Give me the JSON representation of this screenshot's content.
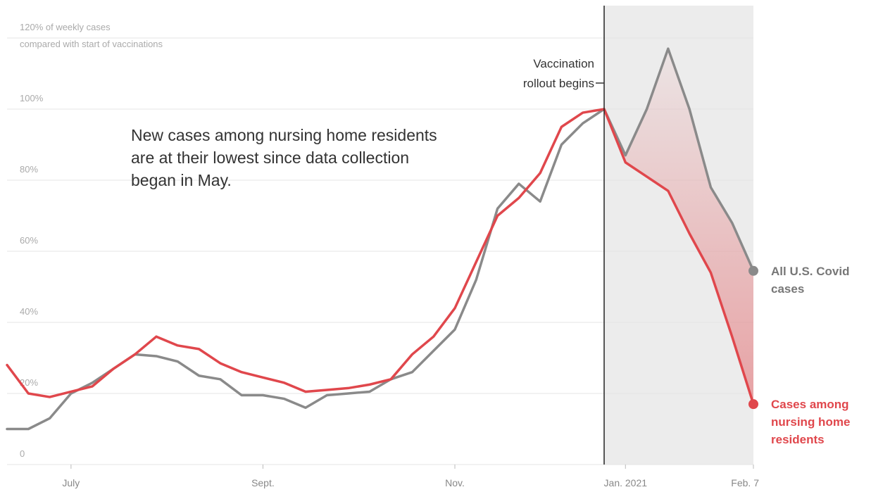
{
  "chart_data": {
    "type": "line",
    "y_axis_note": "compared with start of vaccinations",
    "annotation_text": "New cases among nursing home residents are at their lowest since data collection began in May.",
    "annotations": [
      {
        "label": [
          "Vaccination",
          "rollout begins"
        ],
        "x": 28
      }
    ],
    "categories": [
      null,
      null,
      null,
      "July",
      null,
      null,
      null,
      null,
      null,
      null,
      null,
      null,
      "Sept.",
      null,
      null,
      null,
      null,
      null,
      null,
      null,
      null,
      "Nov.",
      null,
      null,
      null,
      null,
      null,
      null,
      null,
      "Jan. 2021",
      null,
      null,
      null,
      null,
      null,
      "Feb. 7"
    ],
    "series": [
      {
        "name": "All U.S. Covid cases",
        "color": "#8a8a8a",
        "values": [
          10,
          10,
          13,
          20,
          23,
          27,
          31,
          30.5,
          29,
          25,
          24,
          19.5,
          19.5,
          18.5,
          16,
          19.5,
          20,
          20.5,
          24,
          26,
          32,
          38,
          52,
          72,
          79,
          74,
          90,
          96,
          100,
          87,
          100,
          117,
          100,
          78,
          68,
          54.5
        ]
      },
      {
        "name": "Cases among nursing home residents",
        "color": "#e0474c",
        "values": [
          28,
          20,
          19,
          20.5,
          22,
          27,
          31,
          36,
          33.5,
          32.5,
          28.5,
          26,
          24.5,
          23,
          20.5,
          21,
          21.5,
          22.5,
          24,
          31,
          36,
          44,
          57,
          70,
          75,
          82,
          95,
          99,
          100,
          85,
          81,
          77,
          65,
          54,
          36,
          17
        ]
      }
    ],
    "ylim": [
      0,
      120
    ],
    "yticks": [
      {
        "value": 0,
        "label": "0"
      },
      {
        "value": 20,
        "label": "20%"
      },
      {
        "value": 40,
        "label": "40%"
      },
      {
        "value": 60,
        "label": "60%"
      },
      {
        "value": 80,
        "label": "80%"
      },
      {
        "value": 100,
        "label": "100%"
      },
      {
        "value": 120,
        "label": "120% of weekly cases"
      }
    ],
    "grid": true
  }
}
